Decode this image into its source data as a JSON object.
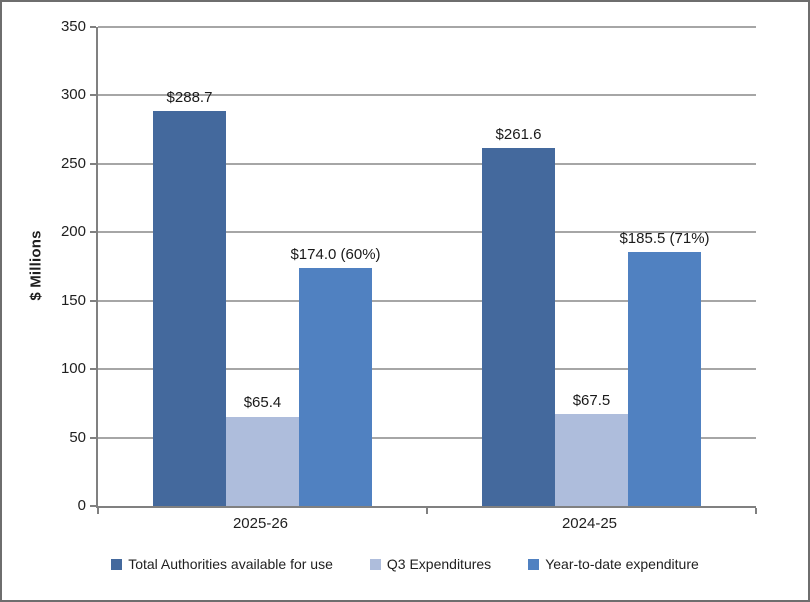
{
  "chart_data": {
    "type": "bar",
    "title": "",
    "xlabel": "",
    "ylabel": "$ Millions",
    "ylim": [
      0,
      350
    ],
    "yticks": [
      0,
      50,
      100,
      150,
      200,
      250,
      300,
      350
    ],
    "grid": true,
    "legend_position": "bottom",
    "categories": [
      "2025-26",
      "2024-25"
    ],
    "series": [
      {
        "name": "Total Authorities available for use",
        "color": "#44699D",
        "values": [
          288.7,
          261.6
        ],
        "labels": [
          "$288.7",
          "$261.6"
        ]
      },
      {
        "name": "Q3 Expenditures",
        "color": "#AEBDDC",
        "values": [
          65.4,
          67.5
        ],
        "labels": [
          "$65.4",
          "$67.5"
        ]
      },
      {
        "name": "Year-to-date expenditure",
        "color": "#5081C1",
        "values": [
          174.0,
          185.5
        ],
        "labels": [
          "$174.0 (60%)",
          "$185.5 (71%)"
        ]
      }
    ],
    "colors": {
      "gridline": "#A6A6A6",
      "axis": "#808080",
      "text": "#1F1F1F",
      "frame_border": "#6E6E6E"
    }
  }
}
